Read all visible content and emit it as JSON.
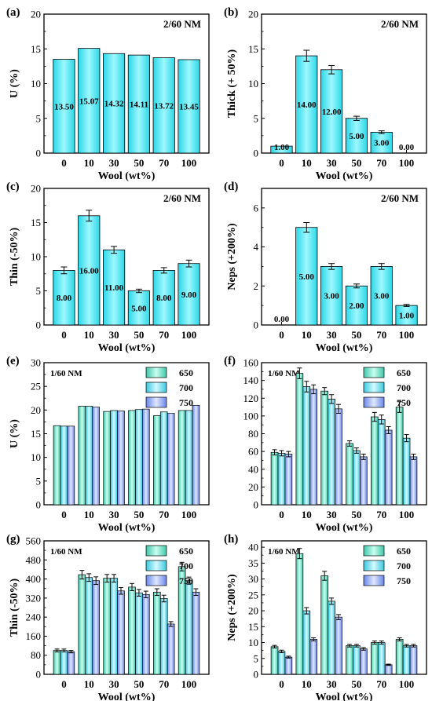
{
  "chart_data": [
    {
      "type": "bar",
      "panel": "(a)",
      "annotation": "2/60 NM",
      "xlabel": "Wool (wt%)",
      "ylabel": "U (%)",
      "categories": [
        "0",
        "10",
        "30",
        "50",
        "70",
        "100"
      ],
      "values": [
        13.5,
        15.07,
        14.32,
        14.11,
        13.72,
        13.45
      ],
      "value_labels": [
        "13.50",
        "15.07",
        "14.32",
        "14.11",
        "13.72",
        "13.45"
      ],
      "errors": [
        0,
        0,
        0,
        0,
        0,
        0
      ],
      "ylim": [
        0,
        20
      ],
      "yticks": [
        "0",
        "5",
        "10",
        "15",
        "20"
      ]
    },
    {
      "type": "bar",
      "panel": "(b)",
      "annotation": "2/60 NM",
      "xlabel": "Wool (wt%)",
      "ylabel": "Thick (+ 50%)",
      "categories": [
        "0",
        "10",
        "30",
        "50",
        "70",
        "100"
      ],
      "values": [
        1.0,
        14.0,
        12.0,
        5.0,
        3.0,
        0.0
      ],
      "value_labels": [
        "1.00",
        "14.00",
        "12.00",
        "5.00",
        "3.00",
        "0.00"
      ],
      "errors": [
        0,
        0.8,
        0.6,
        0.3,
        0.2,
        0
      ],
      "ylim": [
        0,
        20
      ],
      "yticks": [
        "0",
        "5",
        "10",
        "15",
        "20"
      ]
    },
    {
      "type": "bar",
      "panel": "(c)",
      "annotation": "2/60 NM",
      "xlabel": "Wool (wt%)",
      "ylabel": "Thin (-50%)",
      "categories": [
        "0",
        "10",
        "30",
        "50",
        "70",
        "100"
      ],
      "values": [
        8.0,
        16.0,
        11.0,
        5.0,
        8.0,
        9.0
      ],
      "value_labels": [
        "8.00",
        "16.00",
        "11.00",
        "5.00",
        "8.00",
        "9.00"
      ],
      "errors": [
        0.5,
        0.8,
        0.5,
        0.25,
        0.4,
        0.5
      ],
      "ylim": [
        0,
        20
      ],
      "yticks": [
        "0",
        "5",
        "10",
        "15",
        "20"
      ]
    },
    {
      "type": "bar",
      "panel": "(d)",
      "annotation": "2/60 NM",
      "xlabel": "Wool (wt%)",
      "ylabel": "Neps (+200%)",
      "categories": [
        "0",
        "10",
        "30",
        "50",
        "70",
        "100"
      ],
      "values": [
        0.0,
        5.0,
        3.0,
        2.0,
        3.0,
        1.0
      ],
      "value_labels": [
        "0.00",
        "5.00",
        "3.00",
        "2.00",
        "3.00",
        "1.00"
      ],
      "errors": [
        0,
        0.25,
        0.15,
        0.1,
        0.15,
        0.05
      ],
      "ylim": [
        0,
        7
      ],
      "yticks": [
        "0",
        "2",
        "4",
        "6"
      ]
    },
    {
      "type": "bar",
      "panel": "(e)",
      "annotation": "1/60 NM",
      "xlabel": "Wool (wt%)",
      "ylabel": "U (%)",
      "categories": [
        "0",
        "10",
        "30",
        "50",
        "70",
        "100"
      ],
      "legend": "top-right",
      "series": [
        {
          "name": "650",
          "values": [
            16.7,
            20.8,
            19.7,
            19.9,
            18.8,
            19.9
          ],
          "errors": [
            0,
            0,
            0,
            0,
            0,
            0
          ]
        },
        {
          "name": "700",
          "values": [
            16.6,
            20.8,
            19.9,
            20.1,
            19.6,
            19.9
          ],
          "errors": [
            0,
            0,
            0,
            0,
            0,
            0
          ]
        },
        {
          "name": "750",
          "values": [
            16.6,
            20.6,
            19.8,
            20.2,
            19.3,
            21.0
          ],
          "errors": [
            0,
            0,
            0,
            0,
            0,
            0
          ]
        }
      ],
      "ylim": [
        0,
        30
      ],
      "yticks": [
        "0",
        "5",
        "10",
        "15",
        "20",
        "25",
        "30"
      ]
    },
    {
      "type": "bar",
      "panel": "(f)",
      "annotation": "1/60 NM",
      "xlabel": "Wool (wt%)",
      "ylabel": "",
      "categories": [
        "0",
        "10",
        "30",
        "50",
        "70",
        "100"
      ],
      "legend": "top-right",
      "series": [
        {
          "name": "650",
          "values": [
            59,
            148,
            128,
            69,
            99,
            110
          ],
          "errors": [
            3,
            6,
            4,
            3,
            5,
            6
          ]
        },
        {
          "name": "700",
          "values": [
            58,
            133,
            119,
            61,
            96,
            75
          ],
          "errors": [
            3,
            6,
            5,
            3,
            5,
            4
          ]
        },
        {
          "name": "750",
          "values": [
            57,
            130,
            108,
            54,
            84,
            54
          ],
          "errors": [
            3,
            5,
            5,
            3,
            4,
            3
          ]
        }
      ],
      "ylim": [
        0,
        160
      ],
      "yticks": [
        "0",
        "20",
        "40",
        "60",
        "80",
        "100",
        "120",
        "140",
        "160"
      ]
    },
    {
      "type": "bar",
      "panel": "(g)",
      "annotation": "1/60 NM",
      "xlabel": "Wool (wt%)",
      "ylabel": "Thin (-50%)",
      "categories": [
        "0",
        "10",
        "30",
        "50",
        "70",
        "100"
      ],
      "legend": "top-right",
      "series": [
        {
          "name": "650",
          "values": [
            100,
            418,
            403,
            366,
            345,
            452
          ],
          "errors": [
            6,
            18,
            16,
            15,
            14,
            18
          ]
        },
        {
          "name": "700",
          "values": [
            100,
            406,
            403,
            342,
            318,
            393
          ],
          "errors": [
            6,
            16,
            16,
            14,
            14,
            15
          ]
        },
        {
          "name": "750",
          "values": [
            95,
            393,
            350,
            335,
            211,
            345
          ],
          "errors": [
            5,
            16,
            14,
            14,
            10,
            14
          ]
        }
      ],
      "ylim": [
        0,
        560
      ],
      "yticks": [
        "0",
        "80",
        "160",
        "240",
        "320",
        "400",
        "480",
        "560"
      ]
    },
    {
      "type": "bar",
      "panel": "(h)",
      "annotation": "1/60 NM",
      "xlabel": "Wool (wt%)",
      "ylabel": "Neps (+200%)",
      "categories": [
        "0",
        "10",
        "30",
        "50",
        "70",
        "100"
      ],
      "legend": "top-right",
      "series": [
        {
          "name": "650",
          "values": [
            8.7,
            38,
            31,
            9,
            10,
            11
          ],
          "errors": [
            0.4,
            1.6,
            1.4,
            0.4,
            0.5,
            0.5
          ]
        },
        {
          "name": "700",
          "values": [
            7.2,
            20,
            23,
            9,
            10,
            9
          ],
          "errors": [
            0.4,
            1,
            1,
            0.4,
            0.5,
            0.4
          ]
        },
        {
          "name": "750",
          "values": [
            5.4,
            11,
            18,
            8,
            3,
            9
          ],
          "errors": [
            0.3,
            0.5,
            0.8,
            0.4,
            0.2,
            0.4
          ]
        }
      ],
      "ylim": [
        0,
        42
      ],
      "yticks": [
        "0",
        "5",
        "10",
        "15",
        "20",
        "25",
        "30",
        "35",
        "40"
      ]
    }
  ]
}
